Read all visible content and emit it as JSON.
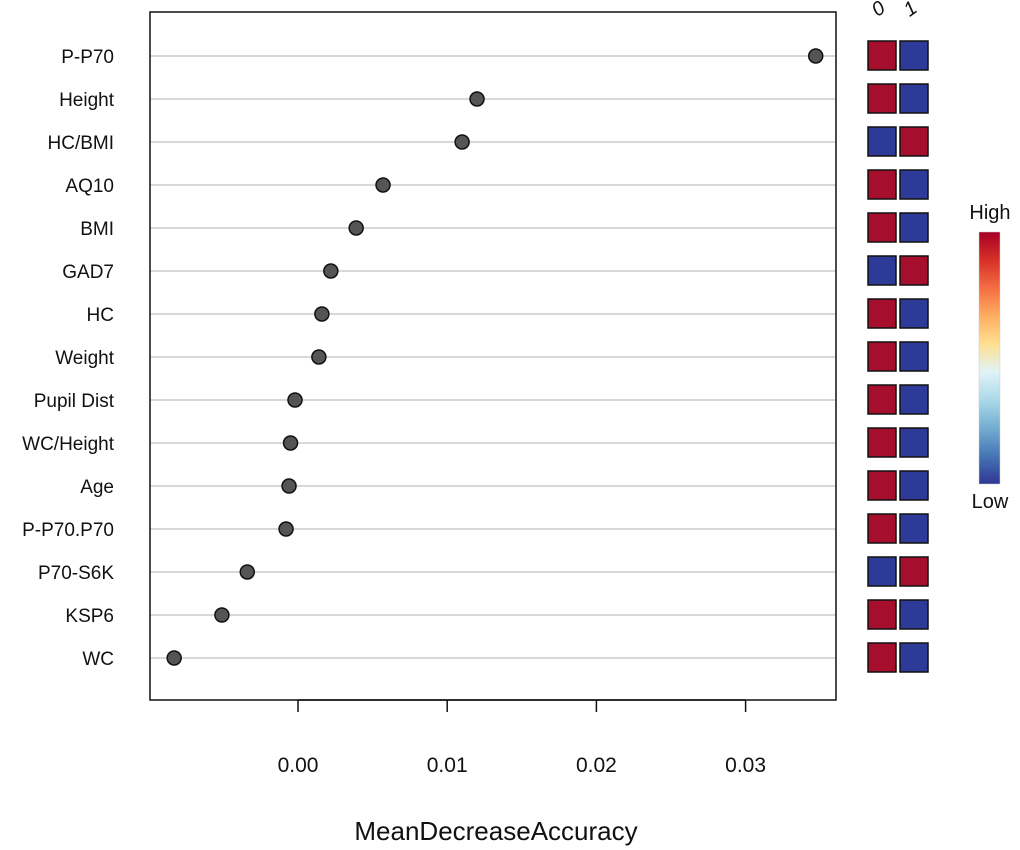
{
  "chart_data": {
    "type": "scatter",
    "title": "",
    "xlabel": "MeanDecreaseAccuracy",
    "ylabel": "",
    "xlim": [
      -0.0099,
      0.0362
    ],
    "x_ticks": [
      "0.00",
      "0.01",
      "0.02",
      "0.03"
    ],
    "x_tick_values": [
      0.0,
      0.01,
      0.02,
      0.03
    ],
    "grid": true,
    "categories": [
      "P-P70",
      "Height",
      "HC/BMI",
      "AQ10",
      "BMI",
      "GAD7",
      "HC",
      "Weight",
      "Pupil Dist",
      "WC/Height",
      "Age",
      "P-P70.P70",
      "P70-S6K",
      "KSP6",
      "WC"
    ],
    "values": [
      0.0347,
      0.012,
      0.011,
      0.0057,
      0.0039,
      0.0022,
      0.0016,
      0.0014,
      -0.0002,
      -0.0005,
      -0.0006,
      -0.0008,
      -0.0034,
      -0.0051,
      -0.0083
    ],
    "heatmap": {
      "columns": [
        "0",
        "1"
      ],
      "levels": [
        [
          "High",
          "Low"
        ],
        [
          "High",
          "Low"
        ],
        [
          "Low",
          "High"
        ],
        [
          "High",
          "Low"
        ],
        [
          "High",
          "Low"
        ],
        [
          "Low",
          "High"
        ],
        [
          "High",
          "Low"
        ],
        [
          "High",
          "Low"
        ],
        [
          "High",
          "Low"
        ],
        [
          "High",
          "Low"
        ],
        [
          "High",
          "Low"
        ],
        [
          "High",
          "Low"
        ],
        [
          "Low",
          "High"
        ],
        [
          "High",
          "Low"
        ],
        [
          "High",
          "Low"
        ]
      ]
    },
    "legend": {
      "high_label": "High",
      "low_label": "Low",
      "placement": "right",
      "gradient": [
        "#a50026",
        "#d73027",
        "#f46d43",
        "#fdae61",
        "#fee090",
        "#e0f3f8",
        "#abd9e9",
        "#74add1",
        "#4575b4",
        "#313695"
      ]
    },
    "colors": {
      "high": "#a50f2d",
      "low": "#2e3a97",
      "point": "#555555",
      "gridline": "#cccccc"
    }
  }
}
